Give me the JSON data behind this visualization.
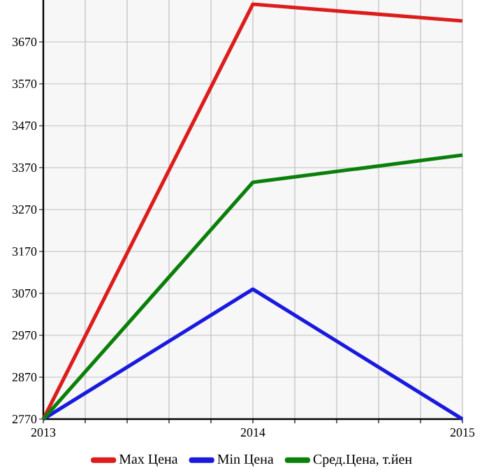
{
  "chart_data": {
    "type": "line",
    "x": [
      2013,
      2014,
      2015
    ],
    "series": [
      {
        "name": "Max Цена",
        "color": "#dd1c1c",
        "values": [
          2770,
          3760,
          3720
        ]
      },
      {
        "name": "Min Цена",
        "color": "#1a1adf",
        "values": [
          2770,
          3080,
          2770
        ]
      },
      {
        "name": "Сред.Цена, т.йен",
        "color": "#0a7f0a",
        "values": [
          2770,
          3335,
          3400
        ]
      }
    ],
    "xlim": [
      2013,
      2015
    ],
    "xticks": [
      2013,
      {
        "value": 2013.2,
        "label": null
      },
      {
        "value": 2013.4,
        "label": null
      },
      {
        "value": 2013.6,
        "label": null
      },
      {
        "value": 2013.8,
        "label": null
      },
      2014,
      {
        "value": 2014.2,
        "label": null
      },
      {
        "value": 2014.4,
        "label": null
      },
      {
        "value": 2014.6,
        "label": null
      },
      {
        "value": 2014.8,
        "label": null
      },
      2015
    ],
    "ylim": [
      2770,
      3770
    ],
    "yticks": [
      2770,
      2870,
      2970,
      3070,
      3170,
      3270,
      3370,
      3470,
      3570,
      3670
    ],
    "grid": true,
    "legend": "bottom",
    "marker": "none",
    "line_style": "solid"
  }
}
